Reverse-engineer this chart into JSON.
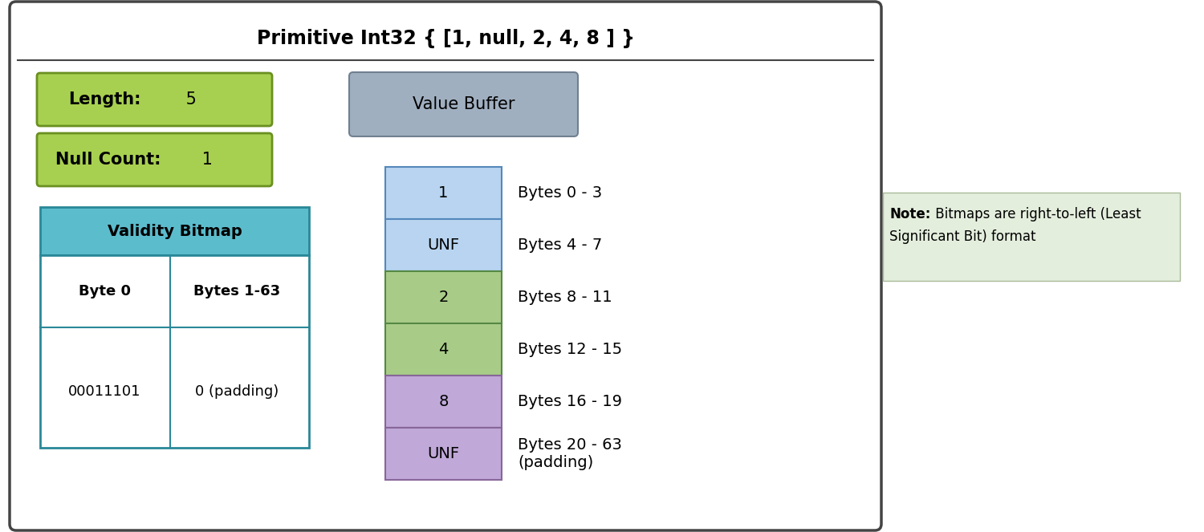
{
  "title": "Primitive Int32 { [1, null, 2, 4, 8 ] }",
  "title_fontsize": 17,
  "bg_color": "#ffffff",
  "outer_box_color": "#444444",
  "length_label_bold": "Length",
  "length_label_normal": ": 5",
  "null_count_label_bold": "Null Count:",
  "null_count_label_normal": " 1",
  "length_box_facecolor": "#a8d050",
  "length_box_edgecolor": "#6a9020",
  "null_count_box_facecolor": "#a8d050",
  "null_count_box_edgecolor": "#6a9020",
  "validity_header": "Validity Bitmap",
  "validity_header_facecolor": "#5bbccc",
  "validity_header_edgecolor": "#2a8898",
  "validity_col1_header": "Byte 0",
  "validity_col2_header": "Bytes 1-63",
  "validity_col1_value": "00011101",
  "validity_col2_value": "0 (padding)",
  "validity_body_facecolor": "#ffffff",
  "validity_body_edgecolor": "#2a8898",
  "value_buffer_label": "Value Buffer",
  "value_buffer_facecolor": "#a0afc0",
  "value_buffer_edgecolor": "#708090",
  "buffer_cells": [
    {
      "label": "1",
      "color": "#b8d4f0",
      "edge": "#5588bb",
      "bytes": "Bytes 0 - 3"
    },
    {
      "label": "UNF",
      "color": "#b8d4f0",
      "edge": "#5588bb",
      "bytes": "Bytes 4 - 7"
    },
    {
      "label": "2",
      "color": "#a8cc88",
      "edge": "#558844",
      "bytes": "Bytes 8 - 11"
    },
    {
      "label": "4",
      "color": "#a8cc88",
      "edge": "#558844",
      "bytes": "Bytes 12 - 15"
    },
    {
      "label": "8",
      "color": "#c0a8d8",
      "edge": "#886699",
      "bytes": "Bytes 16 - 19"
    },
    {
      "label": "UNF",
      "color": "#c0a8d8",
      "edge": "#886699",
      "bytes": "Bytes 20 - 63\n(padding)"
    }
  ],
  "note_facecolor": "#e4eedd",
  "note_edgecolor": "#aabb99",
  "font_color": "#000000",
  "cell_fontsize": 14,
  "bytes_fontsize": 14,
  "validity_fontsize": 13,
  "label_fontsize": 15
}
